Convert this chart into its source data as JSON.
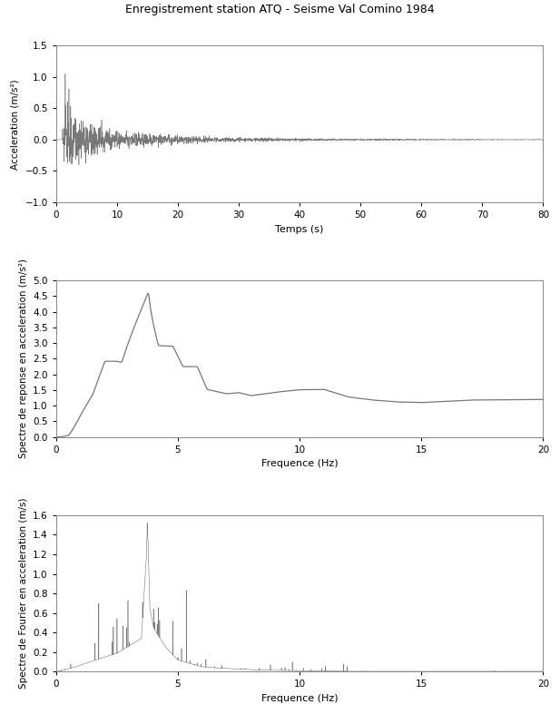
{
  "title": "Enregistrement station ATQ - Seisme Val Comino 1984",
  "title_fontsize": 9,
  "fig_width": 6.17,
  "fig_height": 7.87,
  "bg_color": "#ffffff",
  "line_color": "#777777",
  "plot1": {
    "xlabel": "Temps (s)",
    "ylabel": "Acceleration (m/s²)",
    "xlim": [
      0,
      80
    ],
    "ylim": [
      -1.0,
      1.5
    ],
    "yticks": [
      -1.0,
      -0.5,
      0,
      0.5,
      1.0,
      1.5
    ],
    "xticks": [
      0,
      10,
      20,
      30,
      40,
      50,
      60,
      70,
      80
    ]
  },
  "plot2": {
    "xlabel": "Frequence (Hz)",
    "ylabel": "Spectre de reponse en acceleration (m/s²)",
    "xlim": [
      0,
      20
    ],
    "ylim": [
      0,
      5
    ],
    "yticks": [
      0,
      0.5,
      1.0,
      1.5,
      2.0,
      2.5,
      3.0,
      3.5,
      4.0,
      4.5,
      5.0
    ],
    "xticks": [
      0,
      5,
      10,
      15,
      20
    ]
  },
  "plot3": {
    "xlabel": "Frequence (Hz)",
    "ylabel": "Spectre de Fourier en acceleration (m/s)",
    "xlim": [
      0,
      20
    ],
    "ylim": [
      0,
      1.6
    ],
    "yticks": [
      0,
      0.2,
      0.4,
      0.6,
      0.8,
      1.0,
      1.2,
      1.4,
      1.6
    ],
    "xticks": [
      0,
      5,
      10,
      15,
      20
    ]
  }
}
